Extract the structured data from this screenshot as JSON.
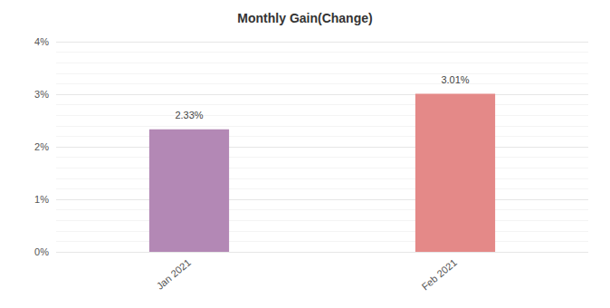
{
  "chart_data": {
    "type": "bar",
    "title": "Monthly Gain(Change)",
    "categories": [
      "Jan 2021",
      "Feb 2021"
    ],
    "values": [
      2.33,
      3.01
    ],
    "value_labels": [
      "2.33%",
      "3.01%"
    ],
    "colors": [
      "#b388b5",
      "#e48988"
    ],
    "ylim": [
      0,
      4
    ],
    "yticks": [
      {
        "value": 0,
        "label": "0%"
      },
      {
        "value": 1,
        "label": "1%"
      },
      {
        "value": 2,
        "label": "2%"
      },
      {
        "value": 3,
        "label": "3%"
      },
      {
        "value": 4,
        "label": "4%"
      }
    ],
    "grid": true,
    "data_labels": true
  }
}
